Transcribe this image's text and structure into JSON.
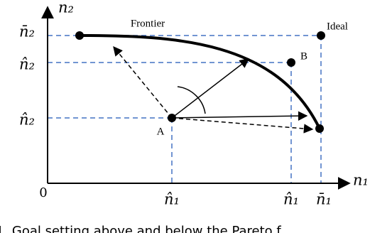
{
  "axes": {
    "y_label": "n₂",
    "x_label": "n₁",
    "origin": "0",
    "y_ticks": [
      "n̄₂",
      "n̂₂",
      "n̂₂"
    ],
    "x_ticks": [
      "n̂₁",
      "n̂₁",
      "n̄₁"
    ]
  },
  "points": {
    "a": "A",
    "b": "B",
    "frontier": "Frontier",
    "ideal": "Ideal"
  },
  "caption": "1. Goal setting above and below the Pareto f"
}
